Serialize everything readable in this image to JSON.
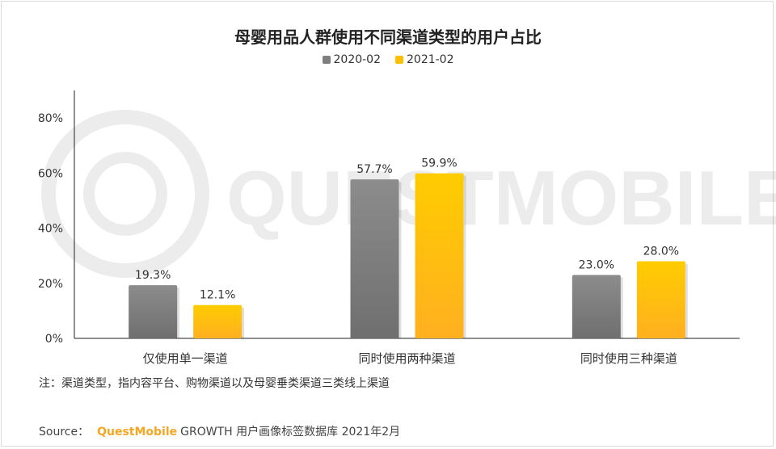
{
  "chart_data": {
    "type": "bar",
    "title": "母婴用品人群使用不同渠道类型的用户占比",
    "categories": [
      "仅使用单一渠道",
      "同时使用两种渠道",
      "同时使用三种渠道"
    ],
    "series": [
      {
        "name": "2020-02",
        "values": [
          19.3,
          57.7,
          23.0
        ],
        "labels": [
          "19.3%",
          "57.7%",
          "23.0%"
        ],
        "color": "#7f7f7f"
      },
      {
        "name": "2021-02",
        "values": [
          12.1,
          59.9,
          28.0
        ],
        "labels": [
          "12.1%",
          "59.9%",
          "28.0%"
        ],
        "color": "#ffc000"
      }
    ],
    "ylim": [
      0,
      80
    ],
    "yticks": [
      0,
      20,
      40,
      60,
      80
    ],
    "ytick_labels": [
      "0%",
      "20%",
      "40%",
      "60%",
      "80%"
    ],
    "xlabel": "",
    "ylabel": "",
    "grid": false,
    "legend_position": "top-center"
  },
  "watermark": "QUESTMOBILE",
  "note": "注：渠道类型，指内容平台、购物渠道以及母婴垂类渠道三类线上渠道",
  "source": {
    "prefix": "Source：",
    "brand": "QuestMobile",
    "text": "GROWTH 用户画像标签数据库 2021年2月"
  }
}
